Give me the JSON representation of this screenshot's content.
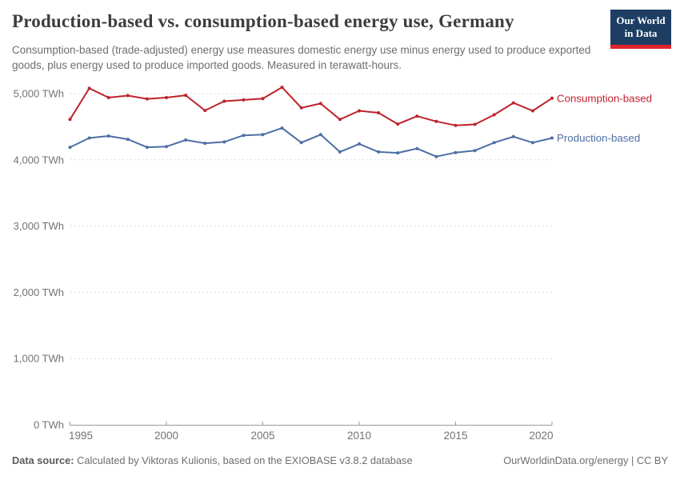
{
  "header": {
    "title": "Production-based vs. consumption-based energy use, Germany",
    "subtitle": "Consumption-based (trade-adjusted) energy use measures domestic energy use minus energy used to produce exported goods, plus energy used to produce imported goods. Measured in terawatt-hours.",
    "logo": {
      "line1": "Our World",
      "line2": "in Data"
    }
  },
  "chart_data": {
    "type": "line",
    "title": "Production-based vs. consumption-based energy use, Germany",
    "unit": "TWh",
    "x": [
      1995,
      1996,
      1997,
      1998,
      1999,
      2000,
      2001,
      2002,
      2003,
      2004,
      2005,
      2006,
      2007,
      2008,
      2009,
      2010,
      2011,
      2012,
      2013,
      2014,
      2015,
      2016,
      2017,
      2018,
      2019,
      2020
    ],
    "xticks": [
      1995,
      2000,
      2005,
      2010,
      2015,
      2020
    ],
    "yticks": [
      0,
      1000,
      2000,
      3000,
      4000,
      5000
    ],
    "ytick_labels": [
      "0 TWh",
      "1,000 TWh",
      "2,000 TWh",
      "3,000 TWh",
      "4,000 TWh",
      "5,000 TWh"
    ],
    "ylim": [
      0,
      5150
    ],
    "grid": "horizontal-dashed",
    "legend_position": "right-of-line-ends",
    "series": [
      {
        "name": "Consumption-based",
        "color": "#be232d",
        "values": [
          4610,
          5080,
          4940,
          4970,
          4920,
          4940,
          4975,
          4745,
          4885,
          4905,
          4925,
          5095,
          4785,
          4850,
          4610,
          4740,
          4710,
          4540,
          4660,
          4580,
          4520,
          4535,
          4680,
          4860,
          4740,
          4930
        ]
      },
      {
        "name": "Production-based",
        "color": "#4d6fa3",
        "values": [
          4190,
          4330,
          4360,
          4310,
          4190,
          4200,
          4300,
          4250,
          4270,
          4370,
          4380,
          4480,
          4260,
          4380,
          4120,
          4240,
          4120,
          4105,
          4170,
          4050,
          4110,
          4140,
          4260,
          4350,
          4260,
          4330
        ]
      }
    ],
    "colors": {
      "grid": "#dcdcdc",
      "axis": "#9a9a9a",
      "tick_text": "#737373"
    }
  },
  "footer": {
    "source_label": "Data source:",
    "source_text": " Calculated by Viktoras Kulionis, based on the EXIOBASE v3.8.2 database",
    "right_text": "OurWorldinData.org/energy | CC BY"
  }
}
